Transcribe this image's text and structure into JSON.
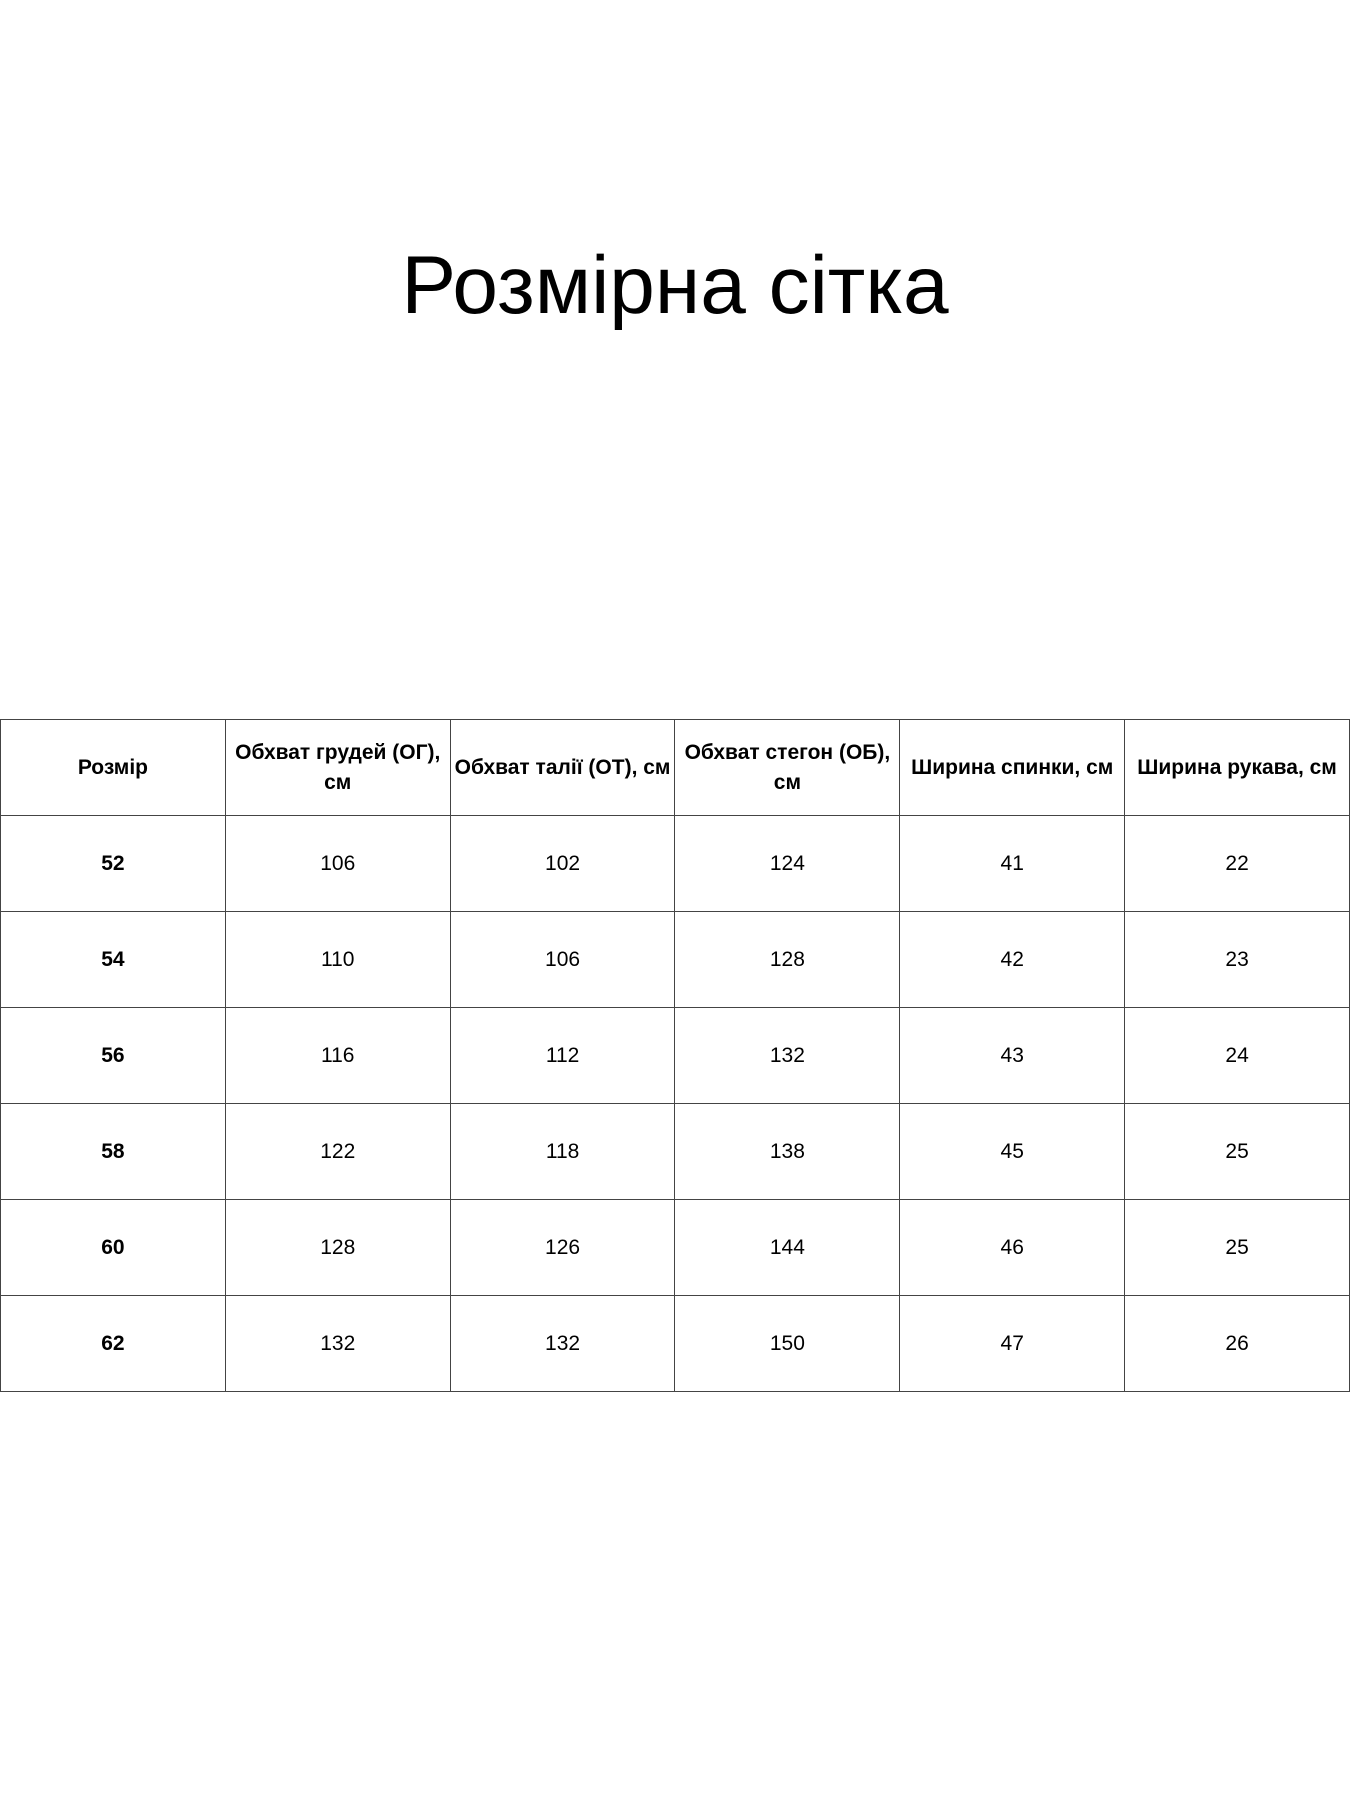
{
  "title": "Розмірна сітка",
  "table": {
    "headers": [
      "Розмір",
      "Обхват грудей (ОГ), см",
      "Обхват талії (ОТ), см",
      "Обхват стегон (ОБ), см",
      "Ширина спинки, см",
      "Ширина рукава, см"
    ],
    "rows": [
      [
        "52",
        "106",
        "102",
        "124",
        "41",
        "22"
      ],
      [
        "54",
        "110",
        "106",
        "128",
        "42",
        "23"
      ],
      [
        "56",
        "116",
        "112",
        "132",
        "43",
        "24"
      ],
      [
        "58",
        "122",
        "118",
        "138",
        "45",
        "25"
      ],
      [
        "60",
        "128",
        "126",
        "144",
        "46",
        "25"
      ],
      [
        "62",
        "132",
        "132",
        "150",
        "47",
        "26"
      ]
    ]
  }
}
